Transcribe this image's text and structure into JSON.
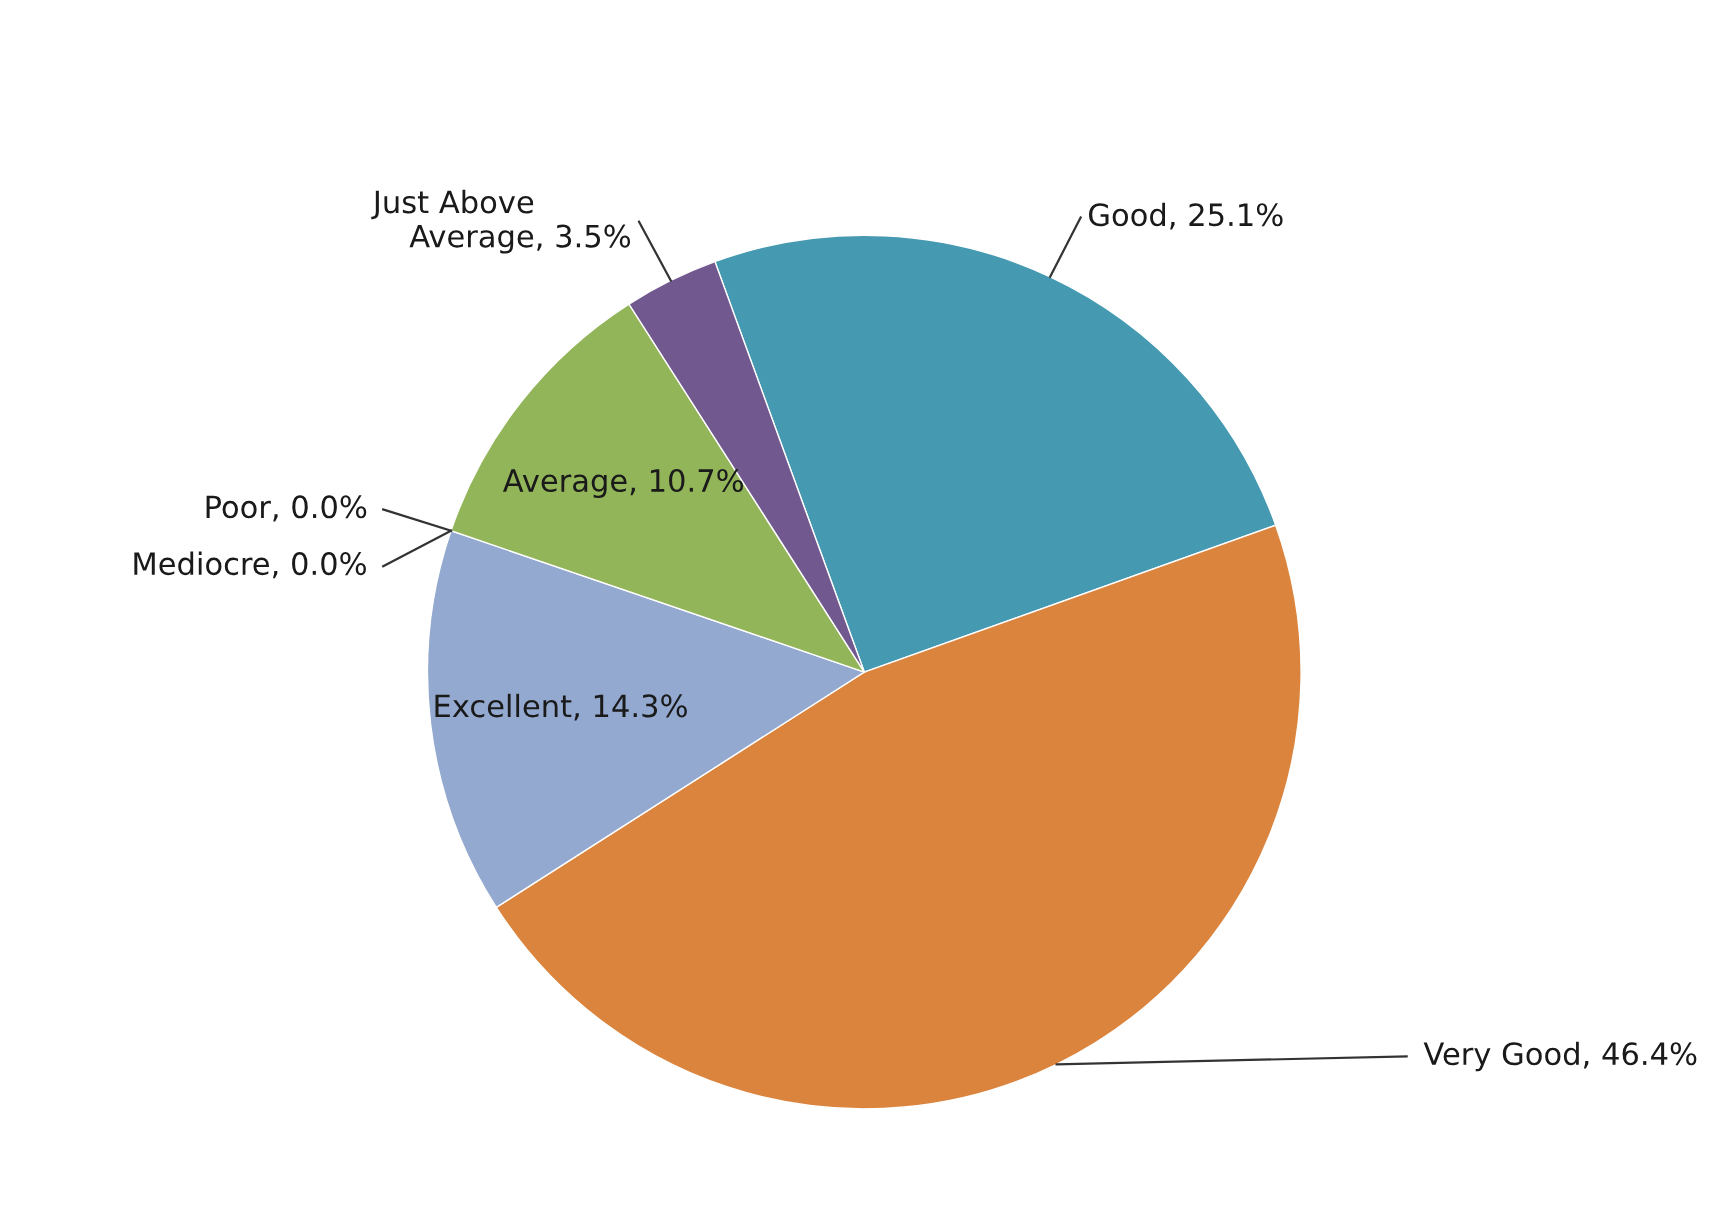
{
  "chart_data": {
    "type": "pie",
    "categories": [
      "Good",
      "Very Good",
      "Excellent",
      "Mediocre",
      "Poor",
      "Average",
      "Just Above Average"
    ],
    "values": [
      25.1,
      46.4,
      14.3,
      0.0,
      0.0,
      10.7,
      3.5
    ],
    "colors": [
      "#4599b1",
      "#db843d",
      "#93a9cf",
      "#aa4643",
      "#4572a7",
      "#93b55a",
      "#71588f"
    ],
    "value_labels": [
      ", 25.1%",
      ", 46.4%",
      ", 14.3%",
      ", 0.0%",
      ", 0.0%",
      ", 10.7%",
      ", 3.5%"
    ]
  }
}
